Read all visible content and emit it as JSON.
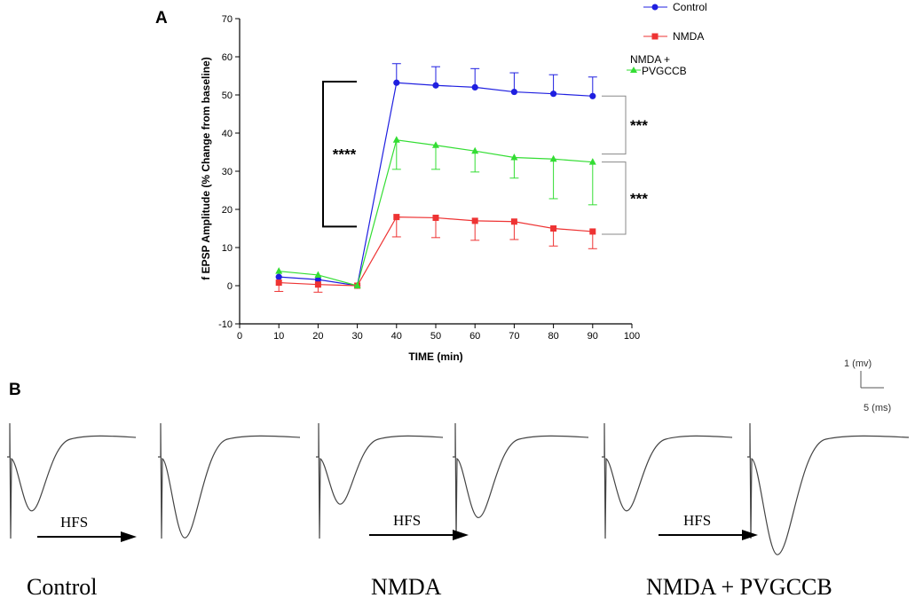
{
  "panel_labels": {
    "a": "A",
    "b": "B"
  },
  "chart_data": {
    "type": "line",
    "title": "",
    "xlabel": "TIME (min)",
    "ylabel": "f EPSP Amplitude (% Change from baseline)",
    "xlim": [
      0,
      100
    ],
    "ylim": [
      -10,
      70
    ],
    "x_ticks": [
      "0",
      "10",
      "20",
      "30",
      "40",
      "50",
      "60",
      "70",
      "80",
      "90",
      "100"
    ],
    "y_ticks": [
      "-10",
      "0",
      "10",
      "20",
      "30",
      "40",
      "50",
      "60",
      "70"
    ],
    "x": [
      10,
      20,
      30,
      40,
      50,
      60,
      70,
      80,
      90
    ],
    "series": [
      {
        "name": "Control",
        "color": "#1f1fe0",
        "marker": "circle",
        "values": [
          2.3,
          1.6,
          0,
          53.2,
          52.5,
          52.0,
          50.8,
          50.3,
          49.7
        ],
        "errors": [
          0,
          0,
          0,
          5.0,
          4.9,
          4.9,
          5.0,
          5.0,
          5.0
        ]
      },
      {
        "name": "NMDA",
        "color": "#ee3333",
        "marker": "square",
        "values": [
          0.8,
          0.3,
          0,
          18.0,
          17.8,
          17.0,
          16.8,
          15.0,
          14.2
        ],
        "errors": [
          2.3,
          2.0,
          0,
          5.2,
          5.2,
          5.1,
          4.7,
          4.6,
          4.5
        ]
      },
      {
        "name": "NMDA + PVGCCB",
        "color": "#33dd33",
        "marker": "triangle",
        "values": [
          3.8,
          2.8,
          0,
          38.2,
          36.8,
          35.3,
          33.6,
          33.2,
          32.4
        ],
        "errors": [
          0,
          0,
          0,
          7.7,
          6.3,
          5.5,
          5.4,
          10.4,
          11.2
        ]
      }
    ],
    "legend": {
      "position": "top-right",
      "entries": [
        "Control",
        "NMDA",
        "NMDA +",
        "PVGCCB"
      ]
    },
    "significance": [
      {
        "label": "****",
        "from_y": 15.5,
        "to_y": 53.5
      },
      {
        "label": "***",
        "from_y": 34.5,
        "to_y": 49.7
      },
      {
        "label": "***",
        "from_y": 13.5,
        "to_y": 32.4
      }
    ]
  },
  "traces": {
    "hfs_labels": [
      "HFS",
      "HFS",
      "HFS"
    ],
    "conditions": [
      "Control",
      "NMDA",
      "NMDA + PVGCCB"
    ],
    "scale_bar": {
      "vertical_label": "1 (mv)",
      "horizontal_label": "5 (ms)"
    },
    "trough_depths": [
      1.6,
      2.4,
      1.4,
      1.8,
      1.6,
      2.9
    ]
  }
}
